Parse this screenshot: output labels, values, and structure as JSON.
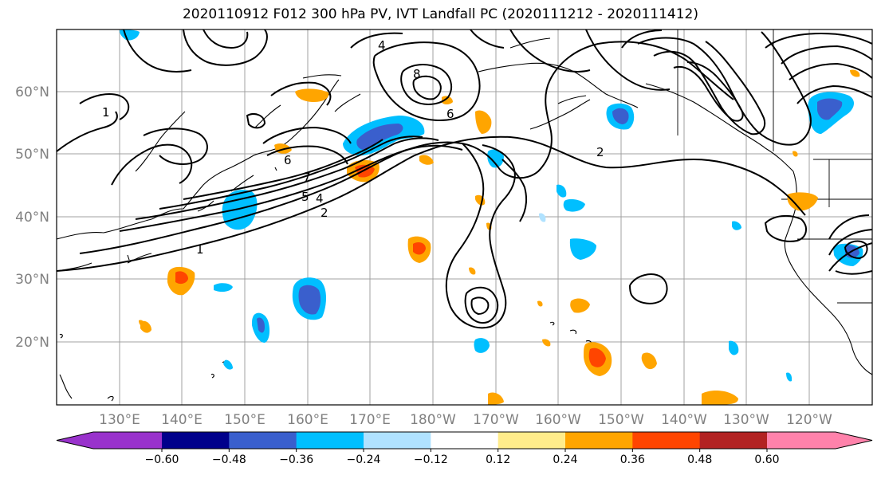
{
  "title": "2020110912 F012 300 hPa PV, IVT Landfall PC (2020111212 - 2020111412)",
  "latitude_labels": [
    "20°N",
    "30°N",
    "40°N",
    "50°N",
    "60°N"
  ],
  "longitude_labels": [
    "130°E",
    "140°E",
    "150°E",
    "160°E",
    "170°E",
    "180°W",
    "170°W",
    "160°W",
    "150°W",
    "140°W",
    "130°W",
    "120°W"
  ],
  "contour_labels": [
    "1",
    "2",
    "4",
    "5",
    "6",
    "7",
    "8",
    "6",
    "4",
    "2",
    "1"
  ],
  "colorbar": {
    "colors": [
      "#9932cc",
      "#00008b",
      "#3a5fcd",
      "#00bfff",
      "#b0e2ff",
      "#ffffff",
      "#ffec8b",
      "#ffa500",
      "#ff4500",
      "#b22222",
      "#ff82ab"
    ],
    "tick_labels": [
      "−0.60",
      "−0.48",
      "−0.36",
      "−0.24",
      "−0.12",
      "0.12",
      "0.24",
      "0.36",
      "0.48",
      "0.60"
    ]
  }
}
